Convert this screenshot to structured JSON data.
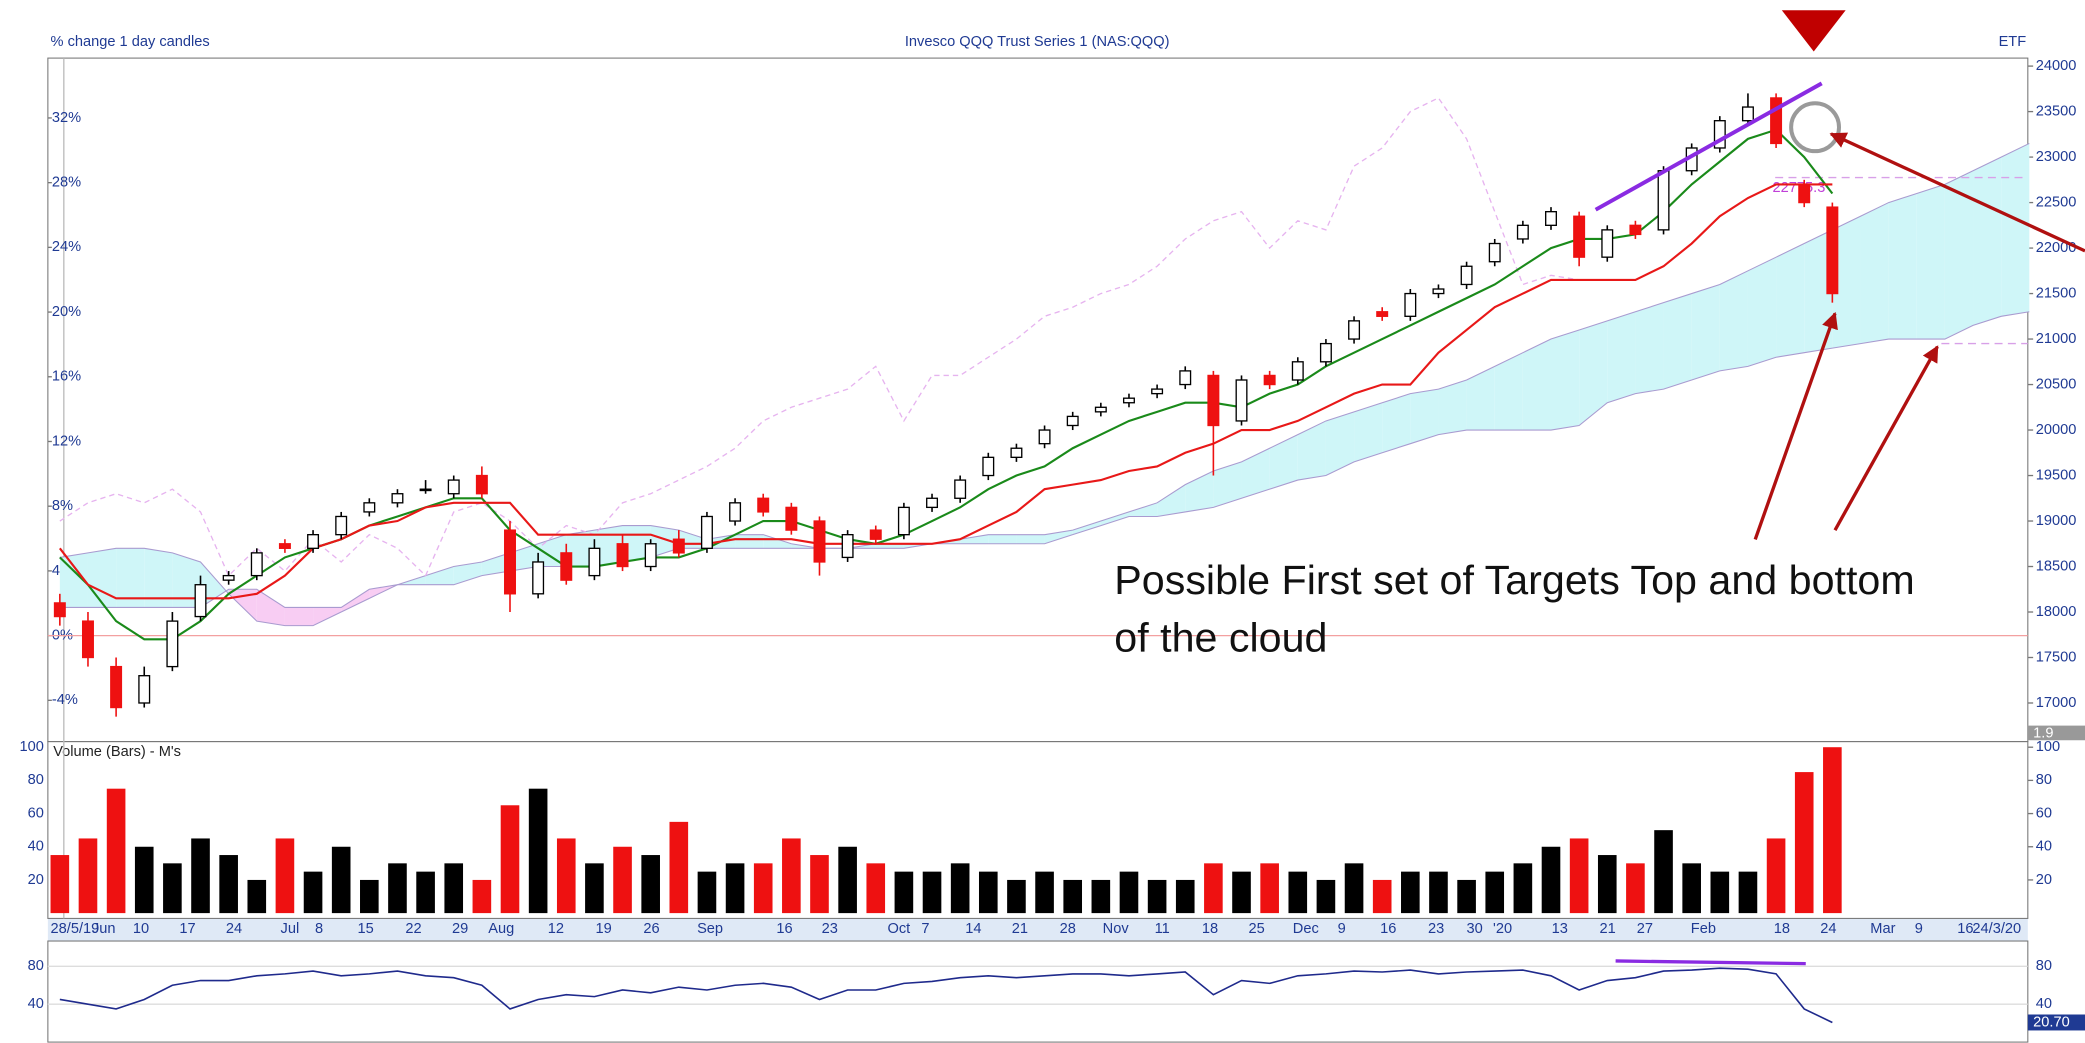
{
  "chart_data": [
    {
      "type": "candlestick",
      "title": "Invesco QQQ Trust Series 1 (NAS:QQQ)",
      "subtitle": "% change 1 day candles",
      "badge": "ETF",
      "x_labels": [
        "28/5/19",
        "Jun",
        "10",
        "17",
        "24",
        "Jul",
        "8",
        "15",
        "22",
        "29",
        "Aug",
        "12",
        "19",
        "26",
        "Sep",
        "16",
        "23",
        "Oct",
        "7",
        "14",
        "21",
        "28",
        "Nov",
        "11",
        "18",
        "25",
        "Dec",
        "9",
        "16",
        "23",
        "30",
        "'20",
        "13",
        "21",
        "27",
        "Feb",
        "18",
        "24",
        "Mar",
        "9",
        "16",
        "24/3/20"
      ],
      "open": [
        18100,
        17900,
        17400,
        17000,
        17400,
        17950,
        18350,
        18400,
        18750,
        18700,
        18850,
        19100,
        19200,
        19350,
        19300,
        19500,
        18900,
        18200,
        18650,
        18400,
        18750,
        18500,
        18800,
        18700,
        19000,
        19250,
        19150,
        19000,
        18600,
        18900,
        18850,
        19150,
        19250,
        19500,
        19700,
        19850,
        20050,
        20200,
        20300,
        20400,
        20500,
        20600,
        20100,
        20600,
        20550,
        20750,
        21000,
        21300,
        21250,
        21500,
        21600,
        21850,
        22100,
        22250,
        22350,
        21900,
        22250,
        22200,
        22850,
        23100,
        23400,
        23650,
        22700,
        22450
      ],
      "high": [
        18200,
        18000,
        17500,
        17400,
        18000,
        18400,
        18450,
        18700,
        18800,
        18900,
        19100,
        19250,
        19350,
        19450,
        19500,
        19600,
        19000,
        18650,
        18750,
        18800,
        18850,
        18800,
        18900,
        19100,
        19250,
        19300,
        19200,
        19050,
        18900,
        18950,
        19200,
        19300,
        19500,
        19750,
        19850,
        20050,
        20200,
        20300,
        20400,
        20500,
        20700,
        20650,
        20600,
        20650,
        20800,
        21000,
        21250,
        21350,
        21550,
        21600,
        21850,
        22100,
        22300,
        22450,
        22400,
        22250,
        22300,
        22900,
        23150,
        23450,
        23700,
        23700,
        22750,
        22500
      ],
      "low": [
        17850,
        17400,
        16850,
        16950,
        17350,
        17900,
        18300,
        18350,
        18650,
        18650,
        18800,
        19050,
        19150,
        19300,
        19250,
        19250,
        18000,
        18150,
        18300,
        18350,
        18450,
        18450,
        18600,
        18650,
        18950,
        19050,
        18850,
        18400,
        18550,
        18750,
        18800,
        19100,
        19200,
        19450,
        19650,
        19800,
        20000,
        20150,
        20250,
        20350,
        20450,
        19500,
        20050,
        20450,
        20500,
        20700,
        20950,
        21200,
        21200,
        21450,
        21550,
        21800,
        22050,
        22200,
        21800,
        21850,
        22100,
        22150,
        22800,
        23050,
        23350,
        23100,
        22450,
        21400
      ],
      "close": [
        17950,
        17500,
        16950,
        17300,
        17900,
        18300,
        18400,
        18650,
        18700,
        18850,
        19050,
        19200,
        19300,
        19350,
        19450,
        19300,
        18200,
        18550,
        18350,
        18700,
        18500,
        18750,
        18650,
        19050,
        19200,
        19100,
        18900,
        18550,
        18850,
        18800,
        19150,
        19250,
        19450,
        19700,
        19800,
        20000,
        20150,
        20250,
        20350,
        20450,
        20650,
        20050,
        20550,
        20500,
        20750,
        20950,
        21200,
        21250,
        21500,
        21550,
        21800,
        22050,
        22250,
        22400,
        21900,
        22200,
        22150,
        22850,
        23100,
        23400,
        23550,
        23150,
        22500,
        21500
      ],
      "up_color": "#ffffff",
      "down_color": "#ee1111",
      "lines": [
        {
          "color": "#1a8a1a",
          "values": [
            18600,
            18300,
            17900,
            17700,
            17700,
            17900,
            18200,
            18400,
            18600,
            18700,
            18800,
            18950,
            19050,
            19150,
            19250,
            19250,
            18900,
            18700,
            18500,
            18500,
            18550,
            18600,
            18600,
            18700,
            18850,
            19000,
            19000,
            18900,
            18800,
            18750,
            18850,
            19000,
            19150,
            19350,
            19500,
            19600,
            19800,
            19950,
            20100,
            20200,
            20300,
            20300,
            20250,
            20400,
            20500,
            20700,
            20850,
            21000,
            21150,
            21300,
            21450,
            21600,
            21800,
            22000,
            22100,
            22100,
            22150,
            22400,
            22700,
            22950,
            23200,
            23300,
            23000,
            22600
          ]
        },
        {
          "color": "#e81818",
          "values": [
            18700,
            18300,
            18150,
            18150,
            18150,
            18150,
            18150,
            18200,
            18400,
            18700,
            18800,
            18950,
            19000,
            19150,
            19200,
            19200,
            19200,
            18850,
            18850,
            18850,
            18850,
            18850,
            18750,
            18750,
            18800,
            18800,
            18800,
            18750,
            18750,
            18750,
            18750,
            18750,
            18800,
            18950,
            19100,
            19350,
            19400,
            19450,
            19550,
            19600,
            19750,
            19850,
            20000,
            20000,
            20100,
            20250,
            20400,
            20500,
            20500,
            20850,
            21100,
            21350,
            21500,
            21650,
            21650,
            21650,
            21650,
            21800,
            22050,
            22350,
            22550,
            22700,
            22700,
            22700
          ]
        }
      ],
      "cloud": {
        "bull_color": "#cff6f8",
        "bear_color": "#f8cdf3",
        "edge_color": "#a99bd0",
        "span_a": [
          18600,
          18650,
          18700,
          18700,
          18650,
          18550,
          18200,
          17900,
          17850,
          17850,
          18000,
          18150,
          18300,
          18400,
          18500,
          18550,
          18650,
          18750,
          18850,
          18900,
          18950,
          18950,
          18900,
          18800,
          18850,
          18850,
          18750,
          18700,
          18700,
          18750,
          18750,
          18750,
          18800,
          18850,
          18850,
          18850,
          18900,
          19000,
          19100,
          19200,
          19400,
          19550,
          19650,
          19800,
          19950,
          20100,
          20200,
          20300,
          20400,
          20450,
          20550,
          20700,
          20850,
          21000,
          21100,
          21200,
          21300,
          21400,
          21500,
          21600,
          21750,
          21900,
          22050,
          22200,
          22350,
          22500,
          22600,
          22700,
          22850,
          23000,
          23150
        ],
        "span_b": [
          18050,
          18050,
          18050,
          18050,
          18050,
          18050,
          18250,
          18250,
          18050,
          18050,
          18050,
          18250,
          18300,
          18300,
          18300,
          18400,
          18450,
          18500,
          18500,
          18500,
          18550,
          18600,
          18700,
          18700,
          18700,
          18700,
          18700,
          18700,
          18700,
          18700,
          18700,
          18750,
          18750,
          18750,
          18750,
          18750,
          18850,
          18950,
          19050,
          19050,
          19100,
          19150,
          19250,
          19350,
          19450,
          19500,
          19650,
          19750,
          19850,
          19950,
          20000,
          20000,
          20000,
          20000,
          20050,
          20300,
          20400,
          20450,
          20550,
          20650,
          20700,
          20800,
          20850,
          20900,
          20950,
          21000,
          21000,
          21000,
          21150,
          21250,
          21300
        ]
      },
      "lagging": {
        "color": "#e6b3ef",
        "values": [
          19000,
          19200,
          19300,
          19200,
          19350,
          19100,
          18400,
          18700,
          18450,
          18800,
          18550,
          18850,
          18700,
          18400,
          19100,
          19200,
          19000,
          18700,
          18950,
          18850,
          19200,
          19300,
          19450,
          19600,
          19800,
          20100,
          20250,
          20350,
          20450,
          20700,
          20100,
          20600,
          20600,
          20800,
          21000,
          21250,
          21350,
          21500,
          21600,
          21800,
          22100,
          22300,
          22400,
          22000,
          22300,
          22200,
          22900,
          23100,
          23500,
          23650,
          23200,
          22400,
          21600,
          21700,
          21650
        ]
      },
      "levels": [
        {
          "value": 22775.3,
          "label": "22775.3"
        },
        {
          "value": 20950
        }
      ],
      "ylim": [
        16576,
        24088
      ],
      "yticks": [
        17000,
        17500,
        18000,
        18500,
        19000,
        19500,
        20000,
        20500,
        21000,
        21500,
        22000,
        22500,
        23000,
        23500,
        24000
      ],
      "y2lim": [
        -6.55,
        35.7
      ],
      "y2ticks": [
        {
          "value": -4,
          "label": "-4%"
        },
        {
          "value": 0,
          "label": "0%"
        },
        {
          "value": 4,
          "label": "4%"
        },
        {
          "value": 8,
          "label": "8%"
        },
        {
          "value": 12,
          "label": "12%"
        },
        {
          "value": 16,
          "label": "16%"
        },
        {
          "value": 20,
          "label": "20%"
        },
        {
          "value": 24,
          "label": "24%"
        },
        {
          "value": 28,
          "label": "28%"
        },
        {
          "value": 32,
          "label": "32%"
        }
      ],
      "zero_line": 0,
      "marker_label": "1.9",
      "annotation": [
        "Possible First set of Targets Top and bottom",
        "of the cloud"
      ]
    },
    {
      "type": "bar",
      "title": "Volume (Bars) - M's",
      "values": [
        35,
        45,
        75,
        40,
        30,
        45,
        35,
        20,
        45,
        25,
        40,
        20,
        30,
        25,
        30,
        20,
        65,
        75,
        45,
        30,
        40,
        35,
        55,
        25,
        30,
        30,
        45,
        35,
        40,
        30,
        25,
        25,
        30,
        25,
        20,
        25,
        20,
        20,
        25,
        20,
        20,
        30,
        25,
        30,
        25,
        20,
        30,
        20,
        25,
        25,
        20,
        25,
        30,
        40,
        45,
        35,
        30,
        50,
        30,
        25,
        25,
        45,
        85,
        100
      ],
      "ylim": [
        -3.2,
        103.4
      ],
      "yticks": [
        20,
        40,
        60,
        80,
        100
      ]
    },
    {
      "type": "line",
      "color": "#1f2a8c",
      "values": [
        45,
        40,
        35,
        45,
        60,
        65,
        65,
        70,
        72,
        75,
        70,
        72,
        75,
        70,
        68,
        60,
        35,
        45,
        50,
        48,
        55,
        52,
        58,
        55,
        60,
        62,
        58,
        45,
        55,
        55,
        62,
        64,
        68,
        70,
        68,
        70,
        72,
        72,
        70,
        72,
        74,
        50,
        65,
        62,
        70,
        72,
        75,
        74,
        76,
        72,
        74,
        75,
        76,
        70,
        55,
        65,
        68,
        75,
        76,
        78,
        77,
        72,
        35,
        20.7
      ],
      "ylim": [
        0,
        106.7
      ],
      "yticks": [
        40,
        80
      ],
      "marker": {
        "value": 20.7,
        "label": "20.70"
      }
    }
  ]
}
